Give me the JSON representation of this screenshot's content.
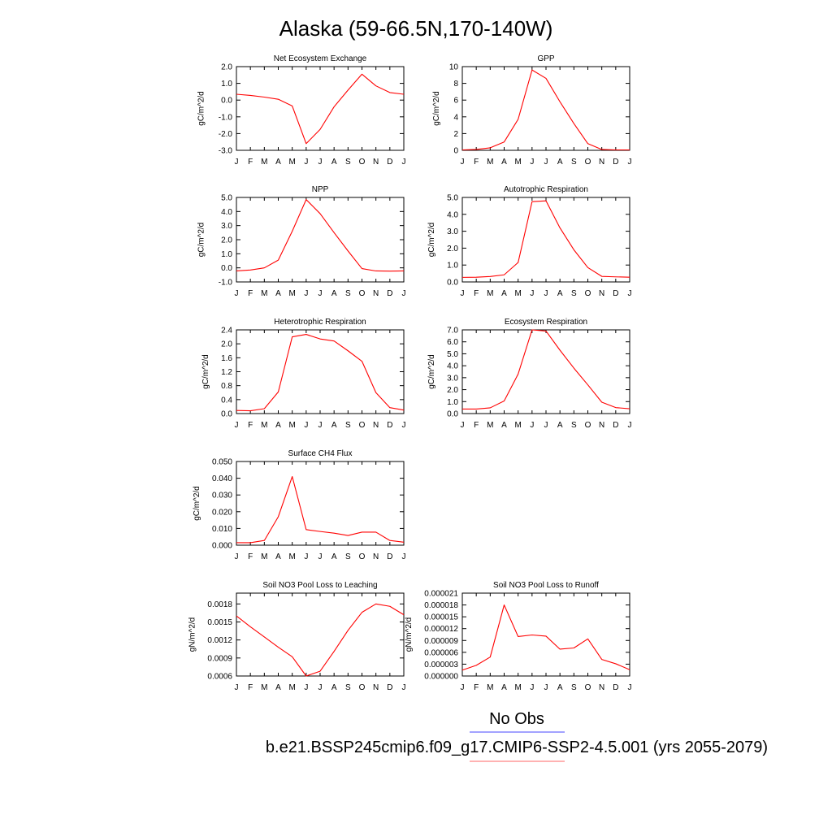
{
  "figure": {
    "title": "Alaska (59-66.5N,170-140W)",
    "legend": {
      "obs_label": "No Obs",
      "model_label": "b.e21.BSSP245cmip6.f09_g17.CMIP6-SSP2-4.5.001 (yrs 2055-2079)",
      "obs_color": "#4444ff",
      "model_color": "#ff6666"
    },
    "line_color": "#ff0000"
  },
  "chart_data": [
    {
      "type": "line",
      "title": "Net Ecosystem Exchange",
      "ylabel": "gC/m^2/d",
      "x": [
        "J",
        "F",
        "M",
        "A",
        "M",
        "J",
        "J",
        "A",
        "S",
        "O",
        "N",
        "D",
        "J"
      ],
      "ylim": [
        -3.0,
        2.0
      ],
      "yticks": [
        "2.0",
        "1.0",
        "0.0",
        "-1.0",
        "-2.0",
        "-3.0"
      ],
      "yticks_values": [
        2.0,
        1.0,
        0.0,
        -1.0,
        -2.0,
        -3.0
      ],
      "series": [
        {
          "values": [
            0.35,
            0.28,
            0.18,
            0.05,
            -0.35,
            -2.6,
            -1.75,
            -0.4,
            0.6,
            1.55,
            0.85,
            0.45,
            0.35
          ]
        }
      ]
    },
    {
      "type": "line",
      "title": "GPP",
      "ylabel": "gC/m^2/d",
      "x": [
        "J",
        "F",
        "M",
        "A",
        "M",
        "J",
        "J",
        "A",
        "S",
        "O",
        "N",
        "D",
        "J"
      ],
      "ylim": [
        0,
        10
      ],
      "yticks": [
        "10",
        "8",
        "6",
        "4",
        "2",
        "0"
      ],
      "yticks_values": [
        10,
        8,
        6,
        4,
        2,
        0
      ],
      "series": [
        {
          "values": [
            0.05,
            0.1,
            0.3,
            1.0,
            3.7,
            9.6,
            8.6,
            5.8,
            3.2,
            0.8,
            0.1,
            0.05,
            0.05
          ]
        }
      ]
    },
    {
      "type": "line",
      "title": "NPP",
      "ylabel": "gC/m^2/d",
      "x": [
        "J",
        "F",
        "M",
        "A",
        "M",
        "J",
        "J",
        "A",
        "S",
        "O",
        "N",
        "D",
        "J"
      ],
      "ylim": [
        -1.0,
        5.0
      ],
      "yticks": [
        "5.0",
        "4.0",
        "3.0",
        "2.0",
        "1.0",
        "0.0",
        "-1.0"
      ],
      "yticks_values": [
        5.0,
        4.0,
        3.0,
        2.0,
        1.0,
        0.0,
        -1.0
      ],
      "series": [
        {
          "values": [
            -0.22,
            -0.15,
            0.0,
            0.55,
            2.6,
            4.85,
            3.85,
            2.5,
            1.2,
            -0.05,
            -0.22,
            -0.23,
            -0.22
          ]
        }
      ]
    },
    {
      "type": "line",
      "title": "Autotrophic Respiration",
      "ylabel": "gC/m^2/d",
      "x": [
        "J",
        "F",
        "M",
        "A",
        "M",
        "J",
        "J",
        "A",
        "S",
        "O",
        "N",
        "D",
        "J"
      ],
      "ylim": [
        0,
        5.0
      ],
      "yticks": [
        "5.0",
        "4.0",
        "3.0",
        "2.0",
        "1.0",
        "0.0"
      ],
      "yticks_values": [
        5.0,
        4.0,
        3.0,
        2.0,
        1.0,
        0.0
      ],
      "series": [
        {
          "values": [
            0.27,
            0.28,
            0.32,
            0.42,
            1.15,
            4.75,
            4.8,
            3.2,
            1.9,
            0.85,
            0.33,
            0.3,
            0.28
          ]
        }
      ]
    },
    {
      "type": "line",
      "title": "Heterotrophic Respiration",
      "ylabel": "gC/m^2/d",
      "x": [
        "J",
        "F",
        "M",
        "A",
        "M",
        "J",
        "J",
        "A",
        "S",
        "O",
        "N",
        "D",
        "J"
      ],
      "ylim": [
        0,
        2.4
      ],
      "yticks": [
        "2.4",
        "2.0",
        "1.6",
        "1.2",
        "0.8",
        "0.4",
        "0.0"
      ],
      "yticks_values": [
        2.4,
        2.0,
        1.6,
        1.2,
        0.8,
        0.4,
        0.0
      ],
      "series": [
        {
          "values": [
            0.09,
            0.08,
            0.14,
            0.62,
            2.2,
            2.27,
            2.14,
            2.08,
            1.8,
            1.5,
            0.6,
            0.17,
            0.1
          ]
        }
      ]
    },
    {
      "type": "line",
      "title": "Ecosystem Respiration",
      "ylabel": "gC/m^2/d",
      "x": [
        "J",
        "F",
        "M",
        "A",
        "M",
        "J",
        "J",
        "A",
        "S",
        "O",
        "N",
        "D",
        "J"
      ],
      "ylim": [
        0,
        7.0
      ],
      "yticks": [
        "7.0",
        "6.0",
        "5.0",
        "4.0",
        "3.0",
        "2.0",
        "1.0",
        "0.0"
      ],
      "yticks_values": [
        7.0,
        6.0,
        5.0,
        4.0,
        3.0,
        2.0,
        1.0,
        0.0
      ],
      "series": [
        {
          "values": [
            0.38,
            0.38,
            0.48,
            1.05,
            3.3,
            7.0,
            6.9,
            5.3,
            3.8,
            2.4,
            0.95,
            0.5,
            0.4
          ]
        }
      ]
    },
    {
      "type": "line",
      "title": "Surface CH4 Flux",
      "ylabel": "gC/m^2/d",
      "x": [
        "J",
        "F",
        "M",
        "A",
        "M",
        "J",
        "J",
        "A",
        "S",
        "O",
        "N",
        "D",
        "J"
      ],
      "ylim": [
        0,
        0.05
      ],
      "yticks": [
        "0.050",
        "0.040",
        "0.030",
        "0.020",
        "0.010",
        "0.000"
      ],
      "yticks_values": [
        0.05,
        0.04,
        0.03,
        0.02,
        0.01,
        0.0
      ],
      "series": [
        {
          "values": [
            0.0015,
            0.0015,
            0.0028,
            0.017,
            0.041,
            0.0093,
            0.0082,
            0.0072,
            0.0058,
            0.0078,
            0.0078,
            0.0028,
            0.0018
          ]
        }
      ]
    },
    {
      "type": "line",
      "title": "Soil NO3 Pool Loss to Leaching",
      "ylabel": "gN/m^2/d",
      "x": [
        "J",
        "F",
        "M",
        "A",
        "M",
        "J",
        "J",
        "A",
        "S",
        "O",
        "N",
        "D",
        "J"
      ],
      "ylim": [
        0.0006,
        0.00198
      ],
      "yticks": [
        "0.0018",
        "0.0015",
        "0.0012",
        "0.0009",
        "0.0006"
      ],
      "yticks_values": [
        0.0018,
        0.0015,
        0.0012,
        0.0009,
        0.0006
      ],
      "series": [
        {
          "values": [
            0.0016,
            0.00142,
            0.00125,
            0.00108,
            0.00092,
            0.0006,
            0.00068,
            0.00101,
            0.00136,
            0.00166,
            0.0018,
            0.00176,
            0.00162
          ]
        }
      ]
    },
    {
      "type": "line",
      "title": "Soil NO3 Pool Loss to Runoff",
      "ylabel": "gN/m^2/d",
      "x": [
        "J",
        "F",
        "M",
        "A",
        "M",
        "J",
        "J",
        "A",
        "S",
        "O",
        "N",
        "D",
        "J"
      ],
      "ylim": [
        0,
        2.1e-05
      ],
      "yticks": [
        "0.000021",
        "0.000018",
        "0.000015",
        "0.000012",
        "0.000009",
        "0.000006",
        "0.000003",
        "0.000000"
      ],
      "yticks_values": [
        2.1e-05,
        1.8e-05,
        1.5e-05,
        1.2e-05,
        9e-06,
        6e-06,
        3e-06,
        0.0
      ],
      "series": [
        {
          "values": [
            1.5e-06,
            2.7e-06,
            4.8e-06,
            1.8e-05,
            1e-05,
            1.04e-05,
            1.01e-05,
            6.8e-06,
            7.1e-06,
            9.4e-06,
            4.2e-06,
            3.1e-06,
            1.6e-06
          ]
        }
      ]
    }
  ]
}
